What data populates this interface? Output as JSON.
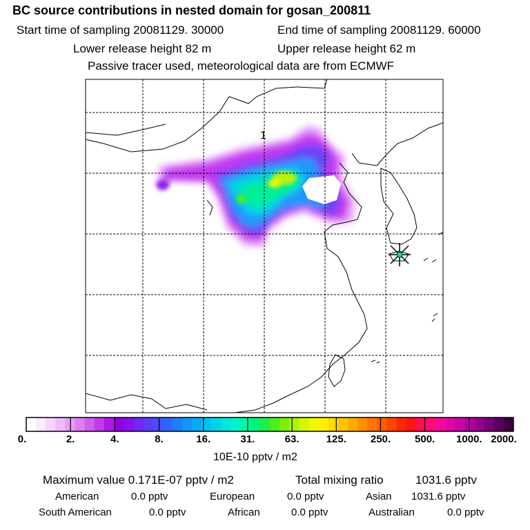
{
  "header": {
    "title": "BC  source contributions in nested domain for gosan_200811",
    "start": "Start time of sampling 20081129. 30000",
    "end": "End time of sampling 20081129. 60000",
    "lower": "Lower release height   82 m",
    "upper": "Upper release height   62 m",
    "tracer": "Passive tracer used, meteorological data are from ECMWF"
  },
  "map": {
    "label": "1",
    "receptor_icon": "star-marker-icon"
  },
  "colorbar": {
    "ticks": [
      "0.",
      "2.",
      "4.",
      "8.",
      "16.",
      "31.",
      "63.",
      "125.",
      "250.",
      "500.",
      "1000.",
      "2000."
    ],
    "units": "10E-10 pptv / m2",
    "colors": [
      "#ffffff",
      "#fbe9ff",
      "#f5d4fd",
      "#efb9fb",
      "#e79cf7",
      "#de7ef3",
      "#d15eef",
      "#c23ae9",
      "#ad18e3",
      "#9400df",
      "#8710ef",
      "#7424f3",
      "#5b3bf7",
      "#4450fb",
      "#2e66fd",
      "#1e7efd",
      "#1295fb",
      "#08abf7",
      "#02c0f1",
      "#00d4e9",
      "#00e7dd",
      "#00f4c9",
      "#00f8a7",
      "#00f47a",
      "#20ef4a",
      "#4cee1c",
      "#7cf00a",
      "#aaf306",
      "#d2f704",
      "#f0f800",
      "#fff000",
      "#ffdc00",
      "#ffc400",
      "#ffab00",
      "#ff9100",
      "#ff7700",
      "#ff5e00",
      "#ff4300",
      "#ff2800",
      "#ff1414",
      "#ff0f4b",
      "#ff0c78",
      "#f5089a",
      "#e006a8",
      "#c904a8",
      "#b002a0",
      "#94008e",
      "#780078",
      "#5a005a",
      "#3c003c"
    ]
  },
  "summary": {
    "max": "Maximum value  0.171E-07 pptv / m2",
    "total_label": "Total mixing ratio",
    "total_value": "1031.6 pptv",
    "american_label": "American",
    "american_value": "0.0 pptv",
    "european_label": "European",
    "european_value": "0.0 pptv",
    "asian_label": "Asian",
    "asian_value": "1031.6 pptv",
    "samerican_label": "South American",
    "samerican_value": "0.0 pptv",
    "african_label": "African",
    "african_value": "0.0 pptv",
    "australian_label": "Australian",
    "australian_value": "0.0 pptv"
  }
}
